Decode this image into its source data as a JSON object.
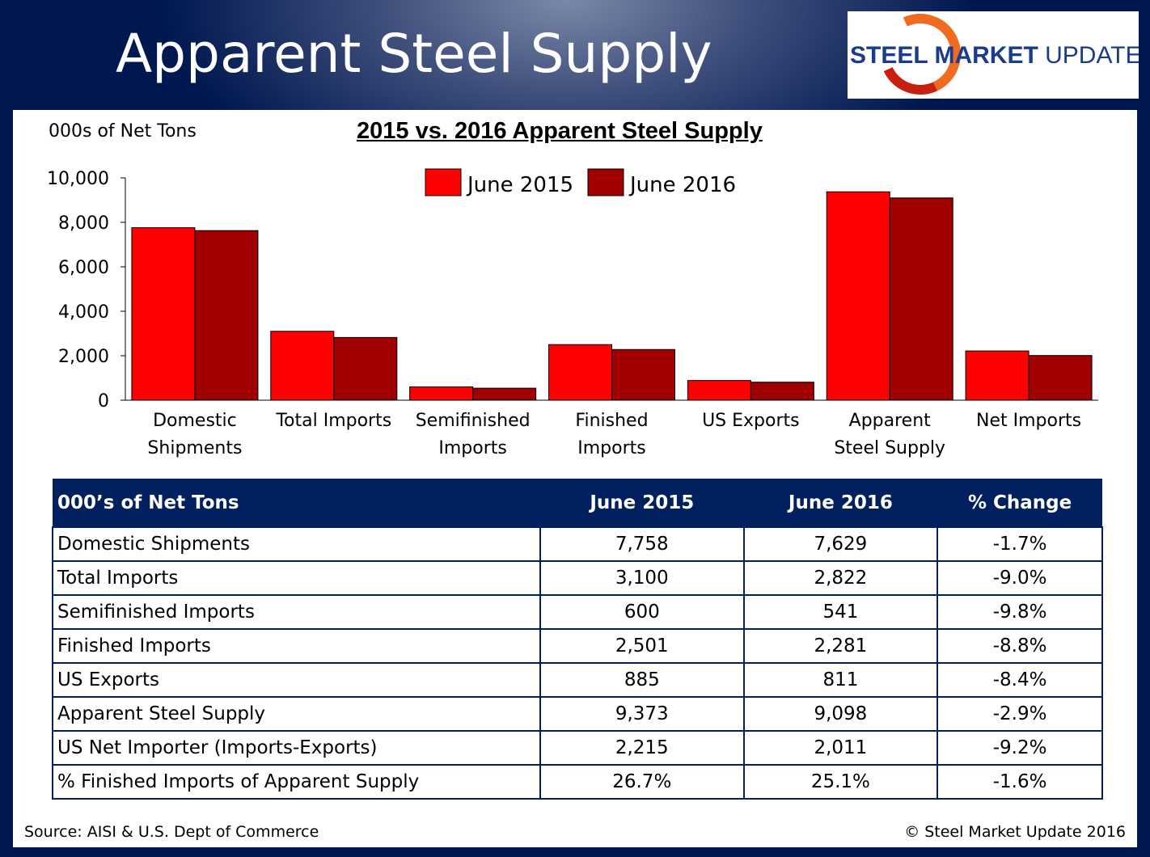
{
  "header": {
    "title": "Apparent Steel Supply",
    "logo_text": "STEEL MARKET UPDATE"
  },
  "chart_data": {
    "type": "bar",
    "title": "2015 vs. 2016 Apparent Steel Supply",
    "ylabel": "000s of Net Tons",
    "ylim": [
      0,
      10000
    ],
    "yticks": [
      "0",
      "2,000",
      "4,000",
      "6,000",
      "8,000",
      "10,000"
    ],
    "categories": [
      [
        "Domestic",
        "Shipments"
      ],
      [
        "Total Imports"
      ],
      [
        "Semifinished",
        "Imports"
      ],
      [
        "Finished",
        "Imports"
      ],
      [
        "US Exports"
      ],
      [
        "Apparent",
        "Steel Supply"
      ],
      [
        "Net Imports"
      ]
    ],
    "series": [
      {
        "name": "June 2015",
        "color": "#ff0000",
        "values": [
          7758,
          3100,
          600,
          2501,
          885,
          9373,
          2215
        ]
      },
      {
        "name": "June 2016",
        "color": "#a00000",
        "values": [
          7629,
          2822,
          541,
          2281,
          811,
          9098,
          2011
        ]
      }
    ],
    "legend": "top-center",
    "grid": false
  },
  "table": {
    "headers": [
      "000’s of Net Tons",
      "June 2015",
      "June 2016",
      "% Change"
    ],
    "rows": [
      [
        "Domestic Shipments",
        "7,758",
        "7,629",
        "-1.7%"
      ],
      [
        "Total Imports",
        "3,100",
        "2,822",
        "-9.0%"
      ],
      [
        "Semifinished Imports",
        "600",
        "541",
        "-9.8%"
      ],
      [
        "Finished Imports",
        "2,501",
        "2,281",
        "-8.8%"
      ],
      [
        "US Exports",
        "885",
        "811",
        "-8.4%"
      ],
      [
        "Apparent Steel Supply",
        "9,373",
        "9,098",
        "-2.9%"
      ],
      [
        "US Net Importer (Imports-Exports)",
        "2,215",
        "2,011",
        "-9.2%"
      ],
      [
        "% Finished Imports of Apparent Supply",
        "26.7%",
        "25.1%",
        "-1.6%"
      ]
    ]
  },
  "footer": {
    "source": "Source:  AISI & U.S. Dept of Commerce",
    "copyright": "©    Steel Market Update 2016"
  }
}
